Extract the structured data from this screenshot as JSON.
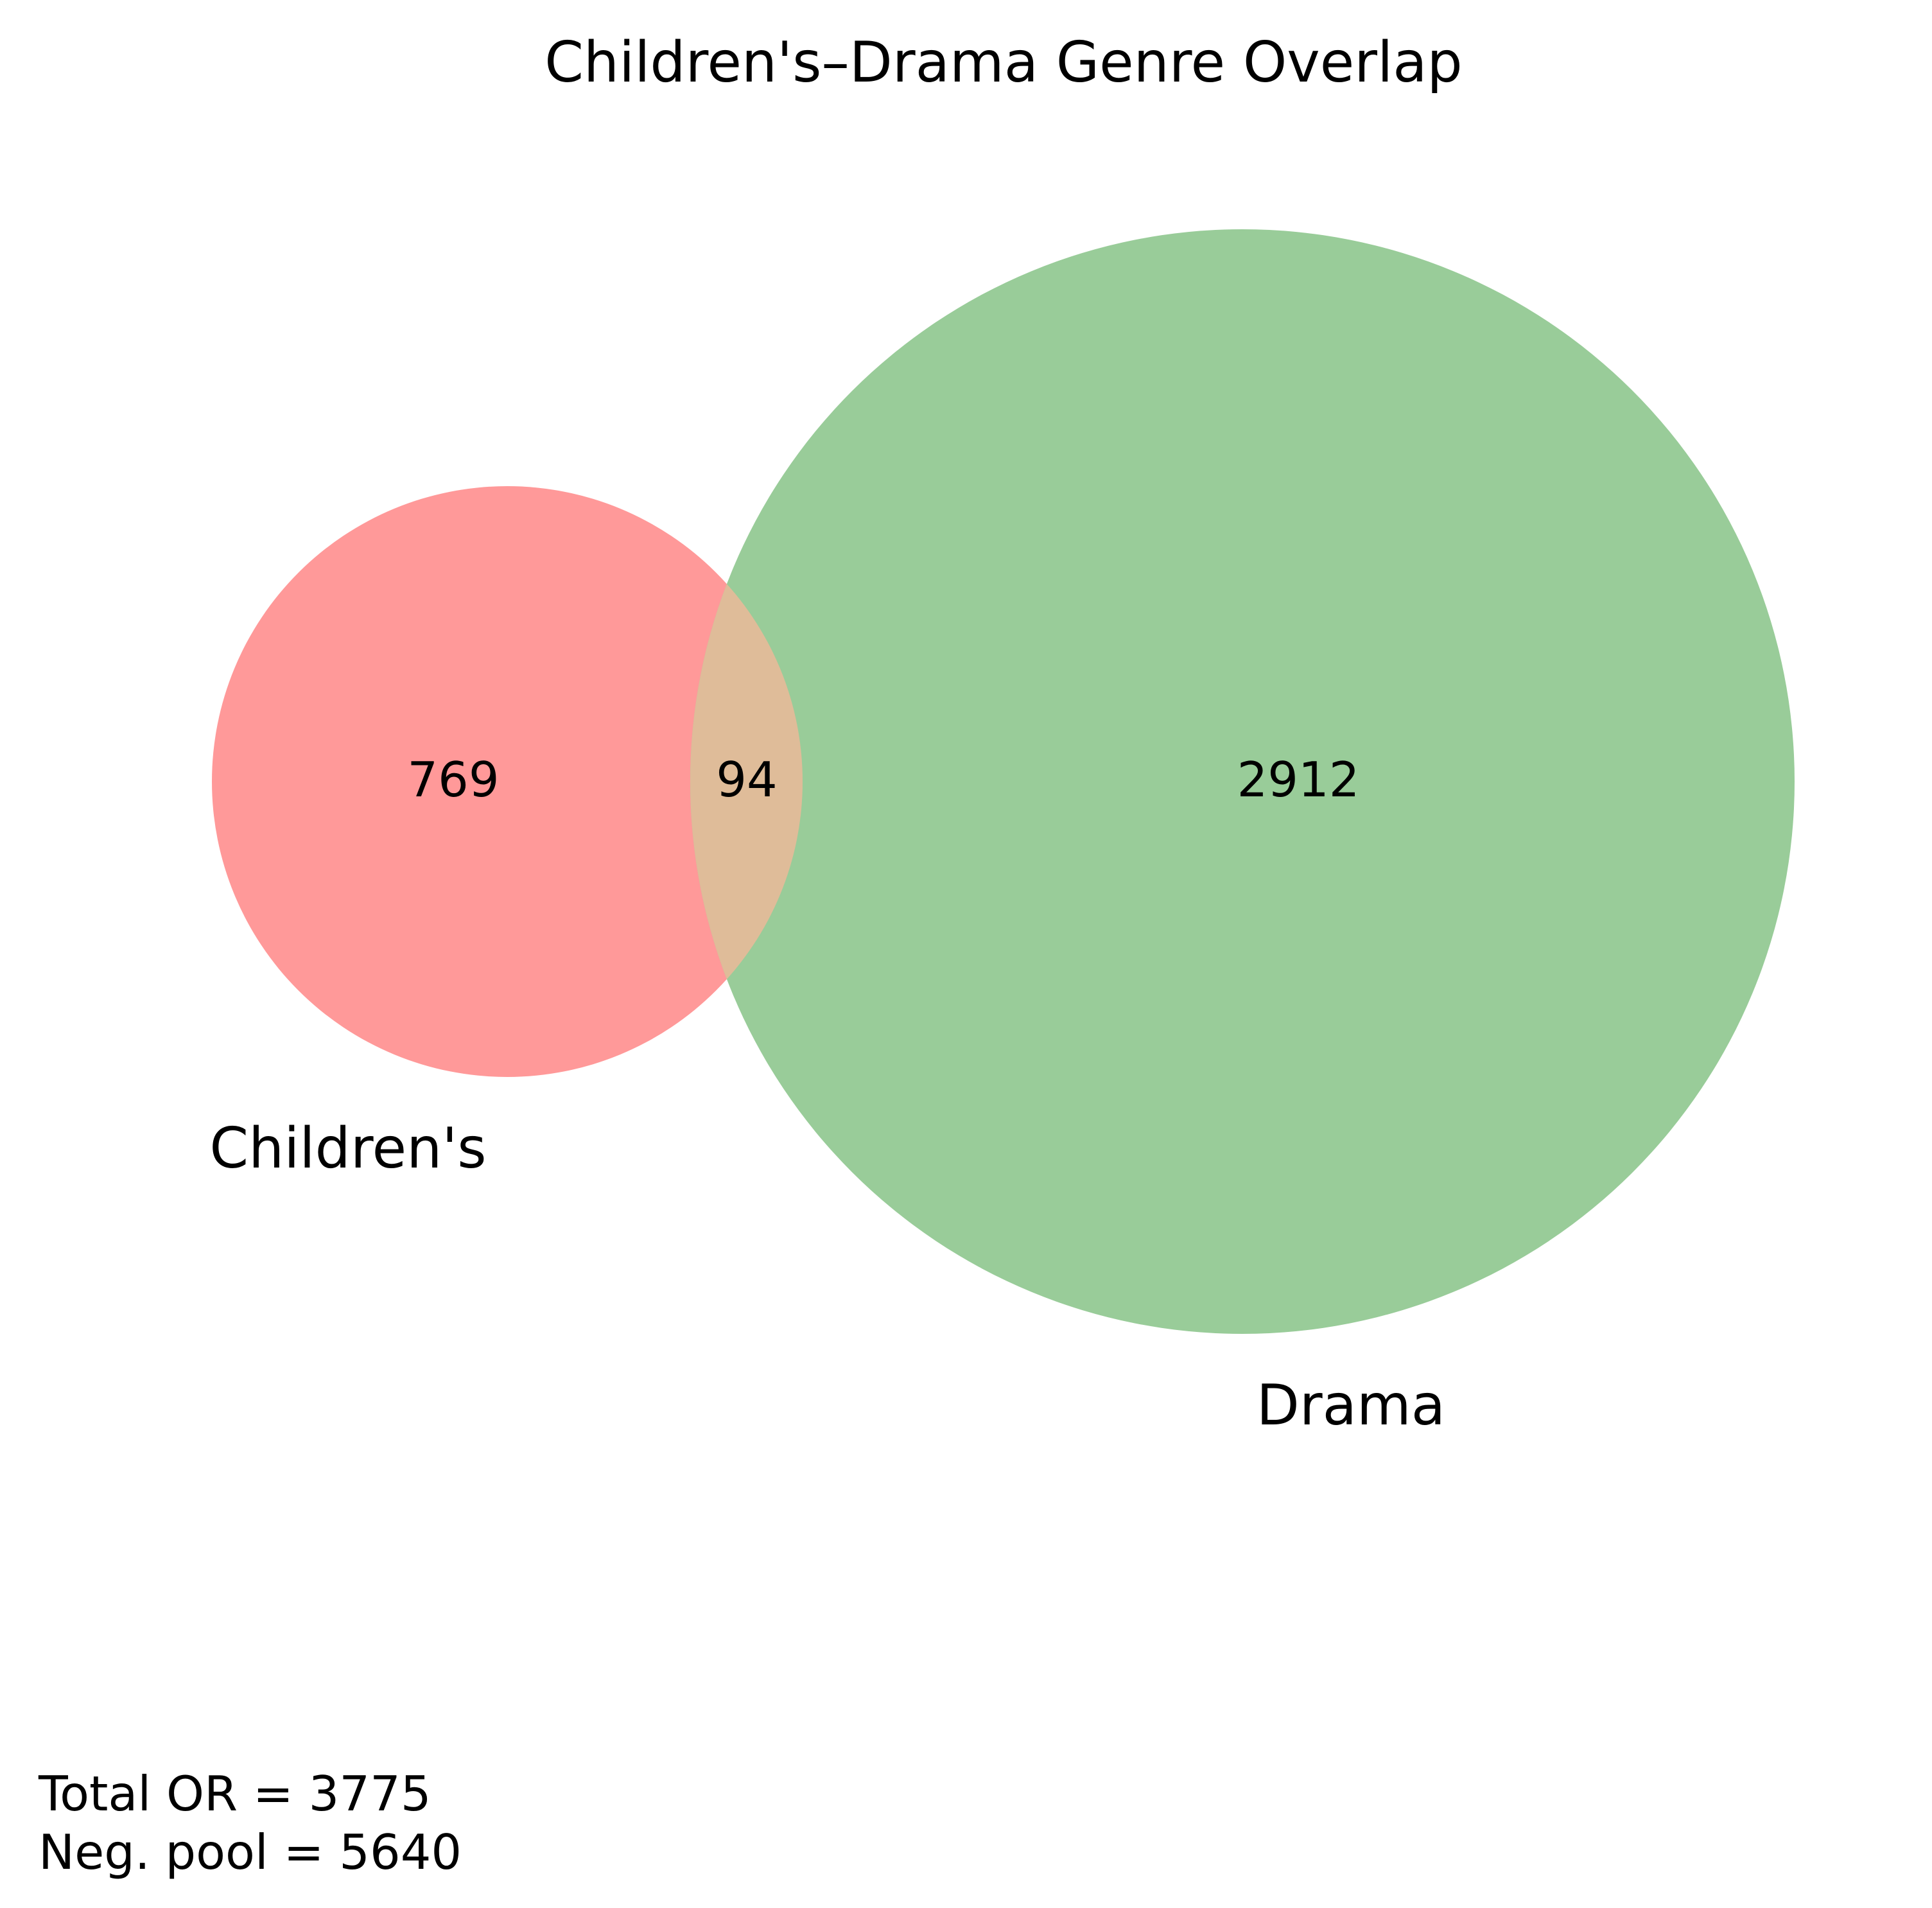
{
  "title": "Children's–Drama Genre Overlap",
  "colors": {
    "childrens_only": "#ff9999",
    "drama_only": "#99cc99",
    "overlap": "#dfbc99",
    "text": "#000000",
    "background": "#ffffff"
  },
  "sets": [
    {
      "key": "childrens",
      "label": "Children's"
    },
    {
      "key": "drama",
      "label": "Drama"
    }
  ],
  "regions": {
    "childrens_only": "769",
    "overlap": "94",
    "drama_only": "2912"
  },
  "footer": {
    "total_line": "Total OR = 3775",
    "pool_line": "Neg. pool = 5640"
  },
  "chart_data": {
    "type": "venn",
    "title": "Children's–Drama Genre Overlap",
    "sets": [
      "Children's",
      "Drama"
    ],
    "subsets": {
      "Children's only": 769,
      "Children's & Drama": 94,
      "Drama only": 2912
    },
    "annotations": [
      "Total OR = 3775",
      "Neg. pool = 5640"
    ]
  }
}
